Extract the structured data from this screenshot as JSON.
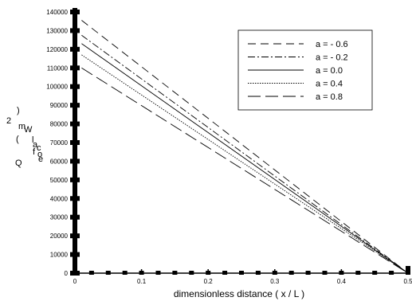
{
  "chart_data": {
    "type": "line",
    "xlabel": "dimensionless distance ( x / L )",
    "ylabel_fragments": [
      "2",
      ")",
      "m",
      "W",
      "(",
      "l",
      "a",
      "c",
      "o",
      "f",
      "e",
      "Q"
    ],
    "xlim": [
      0,
      0.5
    ],
    "ylim": [
      0,
      140000
    ],
    "x_ticks": [
      0,
      0.1,
      0.2,
      0.3,
      0.4,
      0.5
    ],
    "x_tick_labels": [
      "0",
      "0.1",
      "0.2",
      "0.3",
      "0.4",
      "0.5"
    ],
    "y_ticks": [
      0,
      10000,
      20000,
      30000,
      40000,
      50000,
      60000,
      70000,
      80000,
      90000,
      100000,
      110000,
      120000,
      130000,
      140000
    ],
    "y_tick_labels": [
      "0",
      "10000",
      "20000",
      "30000",
      "40000",
      "50000",
      "60000",
      "70000",
      "80000",
      "90000",
      "100000",
      "110000",
      "120000",
      "130000",
      "140000"
    ],
    "legend_position": "top-right",
    "series": [
      {
        "name": "a = - 0.6",
        "dash": "10,6",
        "x": [
          0.01,
          0.5
        ],
        "y": [
          135500,
          0
        ]
      },
      {
        "name": "a = - 0.2",
        "dash": "9,3,2,3",
        "x": [
          0.01,
          0.5
        ],
        "y": [
          127500,
          0
        ]
      },
      {
        "name": "a = 0.0",
        "dash": "",
        "x": [
          0.01,
          0.5
        ],
        "y": [
          123000,
          0
        ]
      },
      {
        "name": "a = 0.4",
        "dash": "1.5,1.5",
        "x": [
          0.01,
          0.5
        ],
        "y": [
          117000,
          0
        ]
      },
      {
        "name": "a = 0.8",
        "dash": "16,6",
        "x": [
          0.01,
          0.5
        ],
        "y": [
          110000,
          0
        ]
      }
    ]
  }
}
